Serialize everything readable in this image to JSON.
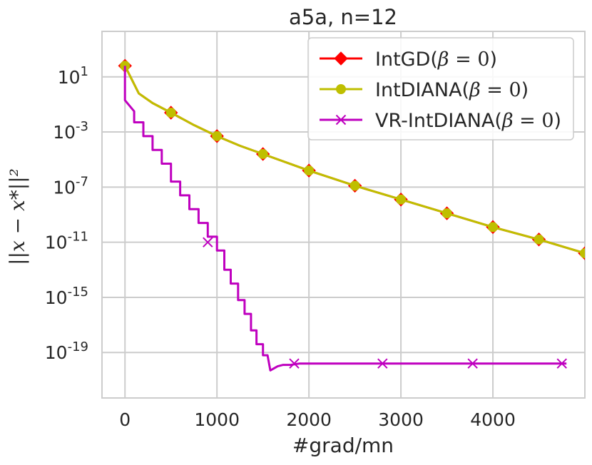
{
  "chart_data": {
    "type": "line",
    "title": "a5a, n=12",
    "xlabel": "#grad/mn",
    "ylabel": "||x − x*||²",
    "xlim": [
      -250,
      5000
    ],
    "ylim_log10": [
      -22.3,
      4.3
    ],
    "yscale": "log",
    "grid": true,
    "legend_position": "top-right",
    "x_ticks": [
      {
        "value": 0,
        "label": "0"
      },
      {
        "value": 1000,
        "label": "1000"
      },
      {
        "value": 2000,
        "label": "2000"
      },
      {
        "value": 3000,
        "label": "3000"
      },
      {
        "value": 4000,
        "label": "4000"
      }
    ],
    "y_ticks": [
      {
        "exp": 1,
        "base": "10",
        "sup": "1"
      },
      {
        "exp": -3,
        "base": "10",
        "sup": "-3"
      },
      {
        "exp": -7,
        "base": "10",
        "sup": "-7"
      },
      {
        "exp": -11,
        "base": "10",
        "sup": "-11"
      },
      {
        "exp": -15,
        "base": "10",
        "sup": "-15"
      },
      {
        "exp": -19,
        "base": "10",
        "sup": "-19"
      }
    ],
    "series": [
      {
        "name": "IntGD",
        "legend_prefix": "IntGD(",
        "legend_suffix": ")",
        "color": "#ff0000",
        "marker": "diamond",
        "log10_points": [
          [
            0,
            1.8
          ],
          [
            150,
            -0.2
          ],
          [
            300,
            -0.9
          ],
          [
            500,
            -1.6
          ],
          [
            750,
            -2.5
          ],
          [
            1000,
            -3.3
          ],
          [
            1250,
            -4.0
          ],
          [
            1500,
            -4.6
          ],
          [
            2000,
            -5.8
          ],
          [
            2500,
            -6.9
          ],
          [
            3000,
            -7.9
          ],
          [
            3500,
            -8.9
          ],
          [
            4000,
            -9.9
          ],
          [
            4500,
            -10.8
          ],
          [
            5000,
            -11.8
          ]
        ],
        "marker_x": [
          0,
          500,
          1000,
          1500,
          2000,
          2500,
          3000,
          3500,
          4000,
          4500,
          5000
        ]
      },
      {
        "name": "IntDIANA",
        "legend_prefix": "IntDIANA(",
        "legend_suffix": ")",
        "color": "#bfbf00",
        "marker": "circle",
        "log10_points": [
          [
            0,
            1.8
          ],
          [
            150,
            -0.2
          ],
          [
            300,
            -0.9
          ],
          [
            500,
            -1.6
          ],
          [
            750,
            -2.5
          ],
          [
            1000,
            -3.3
          ],
          [
            1250,
            -4.0
          ],
          [
            1500,
            -4.6
          ],
          [
            2000,
            -5.8
          ],
          [
            2500,
            -6.9
          ],
          [
            3000,
            -7.9
          ],
          [
            3500,
            -8.9
          ],
          [
            4000,
            -9.9
          ],
          [
            4500,
            -10.8
          ],
          [
            5000,
            -11.8
          ]
        ],
        "marker_x": [
          0,
          500,
          1000,
          1500,
          2000,
          2500,
          3000,
          3500,
          4000,
          4500,
          5000
        ]
      },
      {
        "name": "VR-IntDIANA",
        "legend_prefix": "VR-IntDIANA(",
        "legend_suffix": ")",
        "color": "#bf00bf",
        "marker": "x",
        "log10_points": [
          [
            0,
            1.8
          ],
          [
            0,
            -0.7
          ],
          [
            100,
            -1.5
          ],
          [
            100,
            -2.3
          ],
          [
            200,
            -2.3
          ],
          [
            200,
            -3.3
          ],
          [
            300,
            -3.3
          ],
          [
            300,
            -4.3
          ],
          [
            400,
            -4.3
          ],
          [
            400,
            -5.3
          ],
          [
            500,
            -5.3
          ],
          [
            500,
            -6.6
          ],
          [
            600,
            -6.6
          ],
          [
            600,
            -7.6
          ],
          [
            700,
            -7.6
          ],
          [
            700,
            -8.6
          ],
          [
            800,
            -8.6
          ],
          [
            800,
            -9.6
          ],
          [
            900,
            -9.6
          ],
          [
            900,
            -10.6
          ],
          [
            1000,
            -10.6
          ],
          [
            1000,
            -11.6
          ],
          [
            1080,
            -11.6
          ],
          [
            1080,
            -13.0
          ],
          [
            1150,
            -13.0
          ],
          [
            1150,
            -14.0
          ],
          [
            1230,
            -14.0
          ],
          [
            1230,
            -15.2
          ],
          [
            1300,
            -15.2
          ],
          [
            1300,
            -16.2
          ],
          [
            1370,
            -16.2
          ],
          [
            1370,
            -17.4
          ],
          [
            1430,
            -17.4
          ],
          [
            1430,
            -18.4
          ],
          [
            1500,
            -18.4
          ],
          [
            1500,
            -19.2
          ],
          [
            1550,
            -19.2
          ],
          [
            1580,
            -20.3
          ],
          [
            1660,
            -20.0
          ],
          [
            1720,
            -19.9
          ],
          [
            1800,
            -19.9
          ],
          [
            1900,
            -19.8
          ],
          [
            2200,
            -19.8
          ],
          [
            4800,
            -19.8
          ]
        ],
        "markers": [
          [
            900,
            -11.0
          ],
          [
            1840,
            -19.8
          ],
          [
            2800,
            -19.8
          ],
          [
            3780,
            -19.8
          ],
          [
            4750,
            -19.8
          ]
        ]
      }
    ]
  },
  "legend_beta": "β",
  "legend_equals": " = 0"
}
